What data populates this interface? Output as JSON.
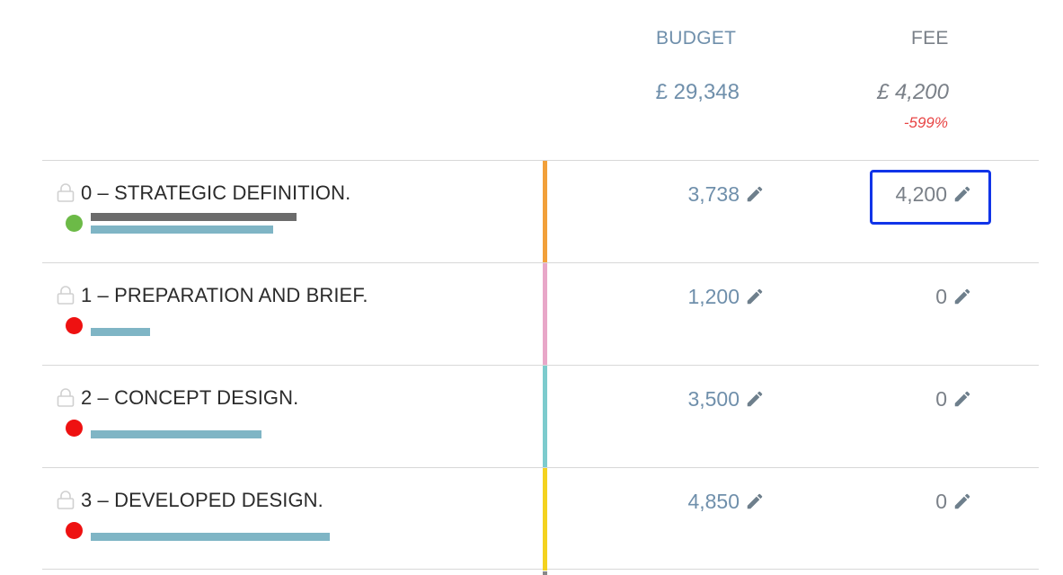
{
  "header": {
    "budget_label": "BUDGET",
    "fee_label": "FEE",
    "budget_total": "£ 29,348",
    "fee_total": "£ 4,200",
    "fee_percent": "-599%"
  },
  "stages": [
    {
      "title": "0 – STRATEGIC DEFINITION.",
      "status_color": "#6cba47",
      "stripe_color": "#f2a03a",
      "budget": "3,738",
      "fee": "4,200",
      "fee_focused": true,
      "progress_grey": 0.7,
      "progress_blue": 0.62
    },
    {
      "title": "1 – PREPARATION AND BRIEF.",
      "status_color": "#ee1111",
      "stripe_color": "#e8a7c8",
      "budget": "1,200",
      "fee": "0",
      "fee_focused": false,
      "progress_grey": 0,
      "progress_blue": 0.2
    },
    {
      "title": "2 – CONCEPT DESIGN.",
      "status_color": "#ee1111",
      "stripe_color": "#7dcbcd",
      "budget": "3,500",
      "fee": "0",
      "fee_focused": false,
      "progress_grey": 0,
      "progress_blue": 0.58
    },
    {
      "title": "3 – DEVELOPED DESIGN.",
      "status_color": "#ee1111",
      "stripe_color": "#f4d21f",
      "budget": "4,850",
      "fee": "0",
      "fee_focused": false,
      "progress_grey": 0,
      "progress_blue": 0.81
    }
  ],
  "icons": {
    "lock": "lock-icon",
    "edit": "pencil-icon"
  }
}
